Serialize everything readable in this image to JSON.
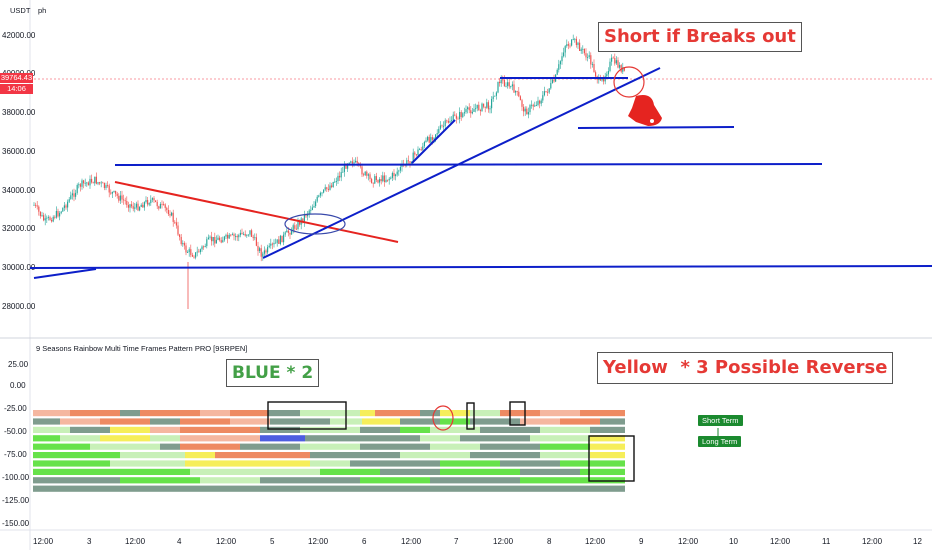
{
  "header": {
    "symbol_tag": "USDT",
    "extra": "ph"
  },
  "price_tag": {
    "value": "39764.43",
    "time": "14:06",
    "color": "#f23645"
  },
  "annotations": {
    "short_text": "Short if Breaks out",
    "blue_text": "BLUE * 2",
    "yellow_text": "Yellow  * 3 Possible Reverse"
  },
  "indicator": {
    "title": "9 Seasons Rainbow Multi Time Frames Pattern PRO [9SRPEN]",
    "short_term_label": "Short Term",
    "long_term_label": "Long Term"
  },
  "price_axis": {
    "labels": [
      "42000.00",
      "40000.00",
      "38000.00",
      "36000.00",
      "34000.00",
      "32000.00",
      "30000.00",
      "28000.00"
    ]
  },
  "indicator_axis": {
    "labels": [
      "25.00",
      "0.00",
      "-25.00",
      "-50.00",
      "-75.00",
      "-100.00",
      "-125.00",
      "-150.00"
    ]
  },
  "time_axis": {
    "labels": [
      "12:00",
      "3",
      "12:00",
      "4",
      "12:00",
      "5",
      "12:00",
      "6",
      "12:00",
      "7",
      "12:00",
      "8",
      "12:00",
      "9",
      "12:00",
      "10",
      "12:00",
      "11",
      "12:00",
      "12"
    ]
  },
  "colors": {
    "up": "#26a69a",
    "down": "#ef5350",
    "trend_blue": "#0d1fc9",
    "trend_red": "#e52420",
    "rainbow_green": "#66e24a",
    "rainbow_lightgreen": "#c8f0b8",
    "rainbow_gray": "#7f9c8e",
    "rainbow_yellow": "#f6ee5a",
    "rainbow_orange": "#ee8a62",
    "rainbow_salmon": "#f5b7a0",
    "rainbow_blue": "#4d5de0"
  }
}
